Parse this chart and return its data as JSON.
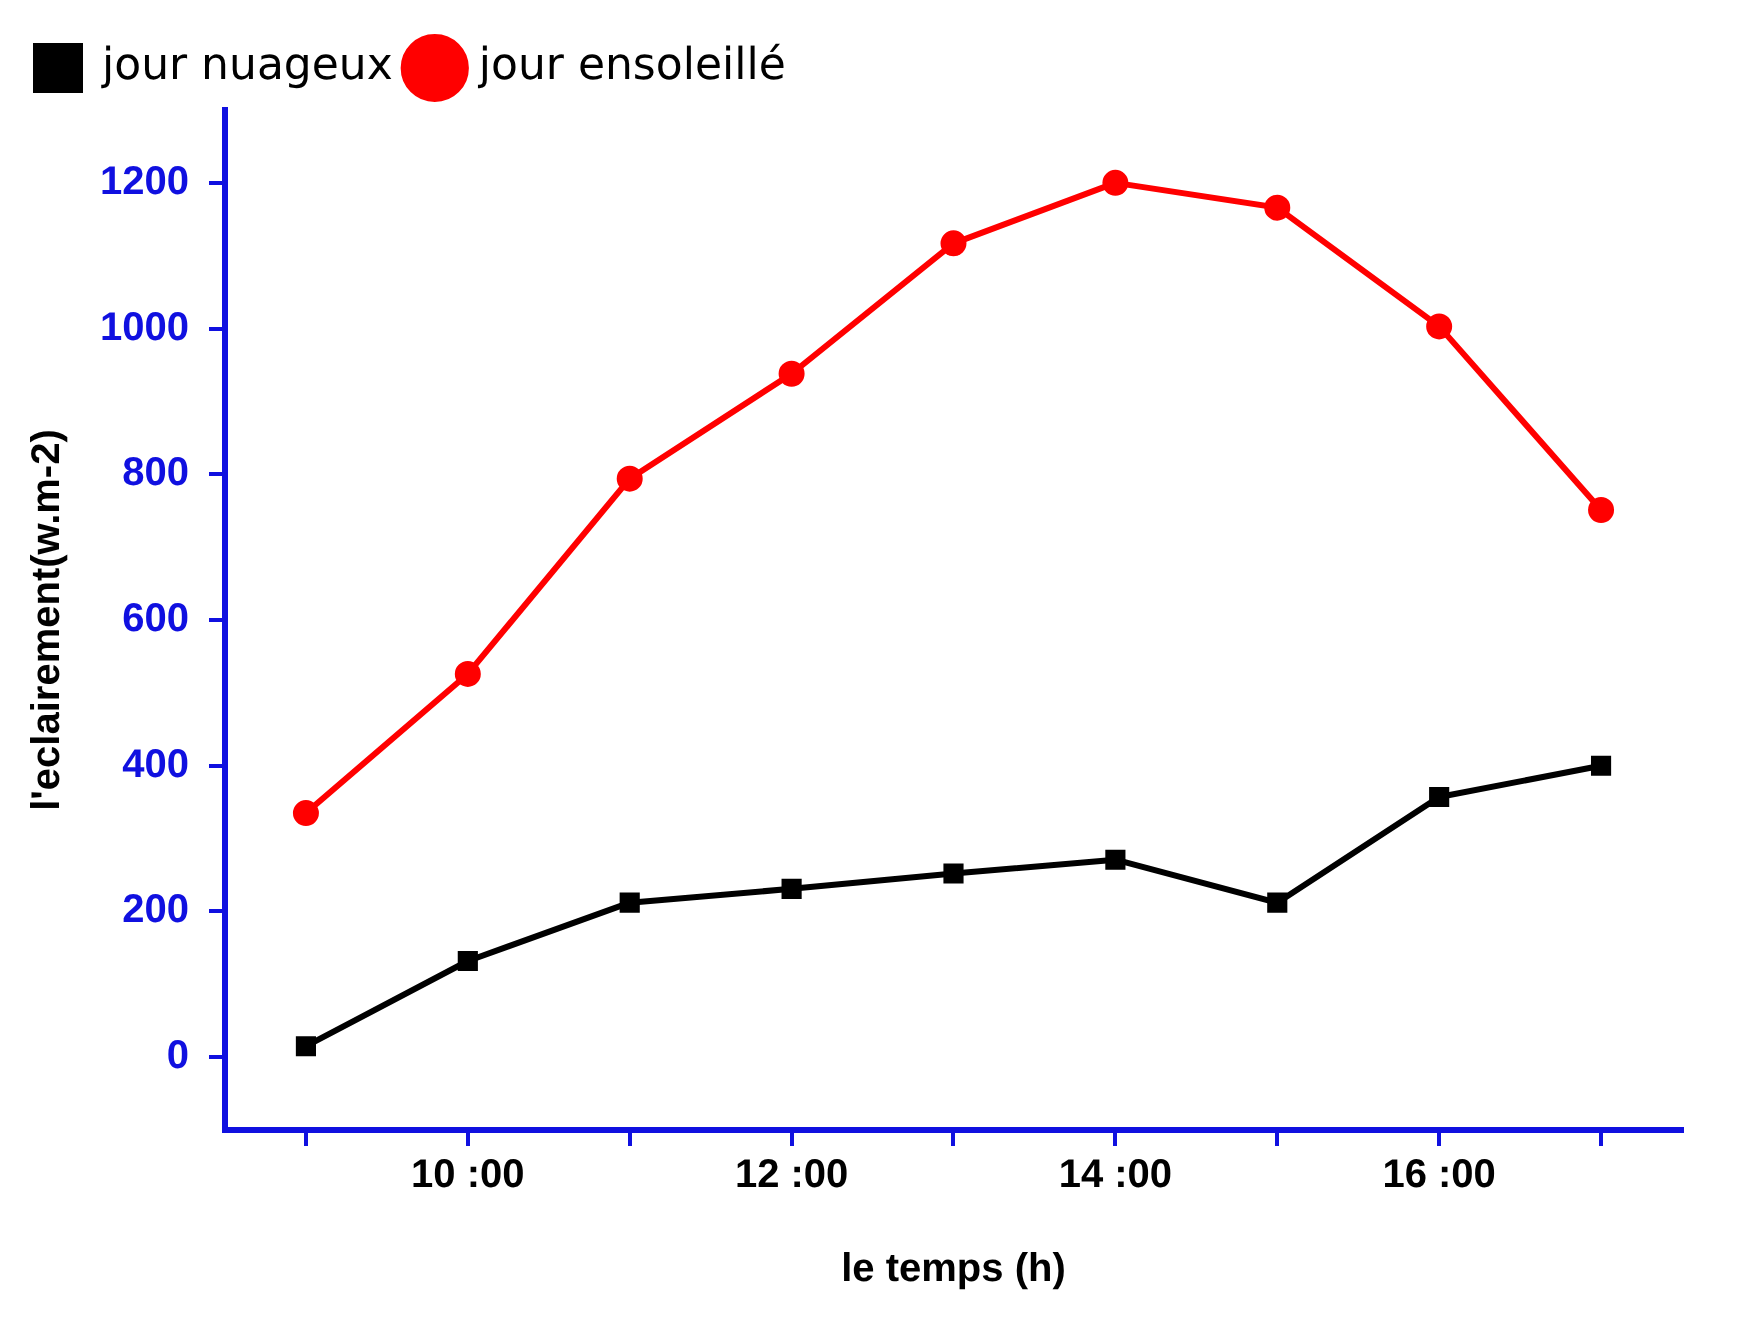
{
  "chart_data": {
    "type": "line",
    "xlabel": "le temps (h)",
    "ylabel": "l'eclairement(w.m-2)",
    "categories": [
      null,
      "10 :00",
      null,
      "12 :00",
      null,
      "14 :00",
      null,
      "16 :00",
      null
    ],
    "series": [
      {
        "name": "jour nuageux",
        "color": "#000000",
        "marker": "square",
        "values": [
          15,
          132,
          212,
          231,
          252,
          271,
          212,
          357,
          400
        ]
      },
      {
        "name": "jour ensoleillé",
        "color": "#ff0000",
        "marker": "circle",
        "values": [
          335,
          526,
          794,
          938,
          1117,
          1200,
          1166,
          1003,
          751
        ]
      }
    ],
    "ylim": [
      -100,
      1300
    ],
    "yticks": [
      0,
      200,
      400,
      600,
      800,
      1000,
      1200
    ],
    "grid": false,
    "legend": "top",
    "line_style": "solid"
  }
}
